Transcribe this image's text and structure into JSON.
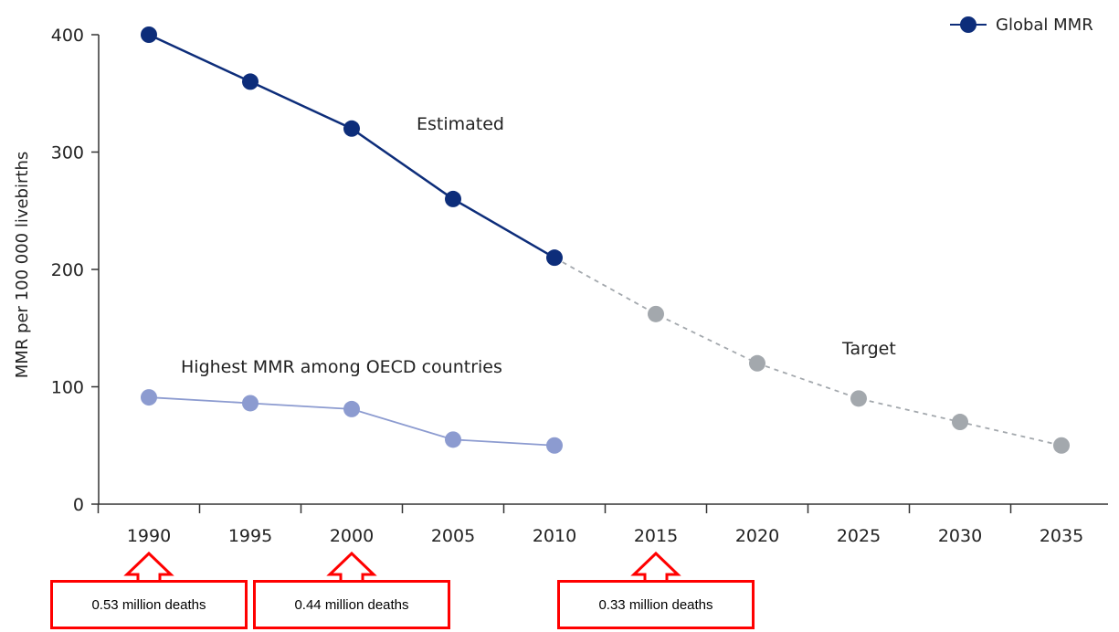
{
  "chart_data": {
    "type": "line",
    "ylabel": "MMR per 100 000 livebirths",
    "ylim": [
      0,
      400
    ],
    "yticks": [
      0,
      100,
      200,
      300,
      400
    ],
    "xticks": [
      "1990",
      "1995",
      "2000",
      "2005",
      "2010",
      "2015",
      "2020",
      "2025",
      "2030",
      "2035"
    ],
    "legend": {
      "label": "Global MMR",
      "position": "top-right"
    },
    "series": [
      {
        "name": "Global MMR",
        "color": "#0d2d7a",
        "style": "solid",
        "x": [
          1990,
          1995,
          2000,
          2005,
          2010
        ],
        "y": [
          400,
          360,
          320,
          260,
          210
        ]
      },
      {
        "color": "#a3a8ad",
        "style": "dashed",
        "x": [
          2010,
          2015,
          2020,
          2025,
          2030,
          2035
        ],
        "y": [
          210,
          162,
          120,
          90,
          70,
          50
        ]
      },
      {
        "color": "#8c9bd0",
        "style": "solid",
        "x": [
          1990,
          1995,
          2000,
          2005,
          2010
        ],
        "y": [
          91,
          86,
          81,
          55,
          50
        ]
      }
    ],
    "annotations": {
      "estimated": "Estimated",
      "target": "Target",
      "oecd": "Highest MMR among OECD countries"
    }
  },
  "callouts": [
    {
      "year": 1990,
      "text": "0.53 million deaths"
    },
    {
      "year": 2000,
      "text": "0.44 million deaths"
    },
    {
      "year": 2015,
      "text": "0.33 million deaths"
    }
  ]
}
